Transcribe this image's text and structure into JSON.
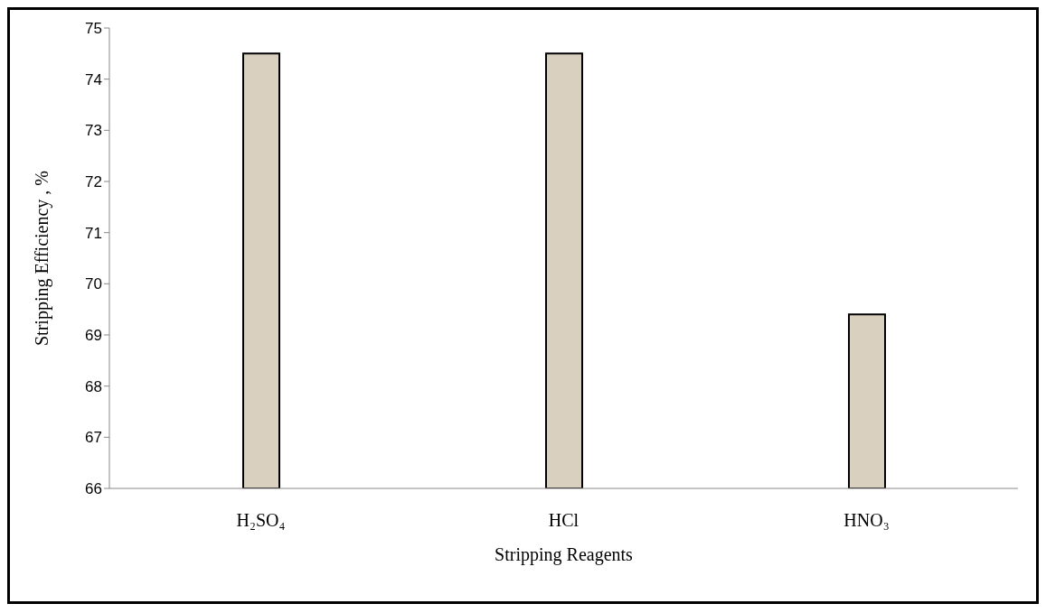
{
  "chart_data": {
    "type": "bar",
    "categories": [
      "H₂SO₄",
      "HCl",
      "HNO₃"
    ],
    "values": [
      74.5,
      74.5,
      69.4
    ],
    "color": "#d9d0bf",
    "xlabel": "Stripping  Reagents",
    "ylabel": "Stripping Efficiency , %",
    "ylim": [
      66,
      75
    ],
    "yticks": [
      66,
      67,
      68,
      69,
      70,
      71,
      72,
      73,
      74,
      75
    ],
    "grid": false
  }
}
